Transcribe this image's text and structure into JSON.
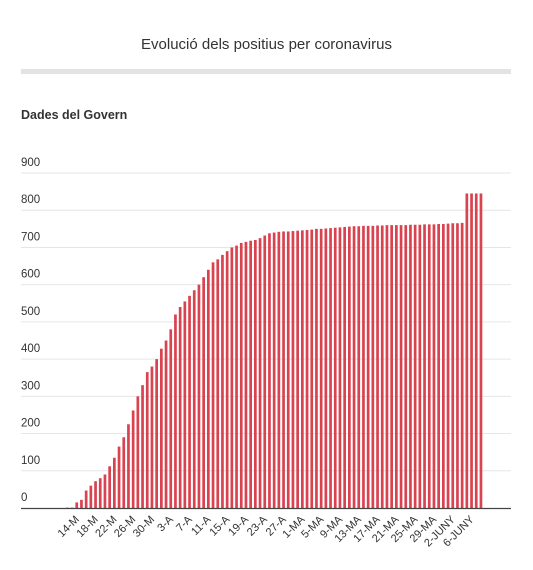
{
  "header": {
    "title": "Evolució dels positius per coronavirus",
    "subtitle": "Dades del Govern"
  },
  "colors": {
    "bar": "#d9434f",
    "grid": "#e6e6e6",
    "axis": "#444444",
    "rule": "#e3e3e3"
  },
  "chart_data": {
    "type": "bar",
    "title": "Evolució dels positius per coronavirus",
    "subtitle": "Dades del Govern",
    "xlabel": "",
    "ylabel": "",
    "ylim": [
      0,
      900
    ],
    "yticks": [
      0,
      100,
      200,
      300,
      400,
      500,
      600,
      700,
      800,
      900
    ],
    "grid": true,
    "legend": "none",
    "x_tick_labels": [
      "14-M",
      "18-M",
      "22-M",
      "26-M",
      "30-M",
      "3-A",
      "7-A",
      "11-A",
      "15-A",
      "19-A",
      "23-A",
      "27-A",
      "1-MA",
      "5-MA",
      "9-MA",
      "13-MA",
      "17-MA",
      "21-MA",
      "25-MA",
      "29-MA",
      "2-JUNY",
      "6-JUNY"
    ],
    "values": [
      1,
      1,
      15,
      22,
      47,
      60,
      72,
      80,
      90,
      112,
      135,
      165,
      190,
      225,
      262,
      300,
      330,
      365,
      380,
      400,
      428,
      450,
      480,
      520,
      540,
      555,
      570,
      585,
      600,
      620,
      640,
      660,
      668,
      680,
      690,
      700,
      705,
      712,
      715,
      718,
      720,
      725,
      732,
      738,
      740,
      742,
      743,
      743,
      744,
      745,
      746,
      747,
      748,
      750,
      750,
      751,
      752,
      753,
      754,
      755,
      756,
      757,
      757,
      758,
      758,
      758,
      759,
      759,
      760,
      760,
      760,
      760,
      760,
      761,
      761,
      761,
      762,
      762,
      762,
      763,
      763,
      764,
      765,
      765,
      766,
      845,
      845,
      845,
      845
    ]
  }
}
